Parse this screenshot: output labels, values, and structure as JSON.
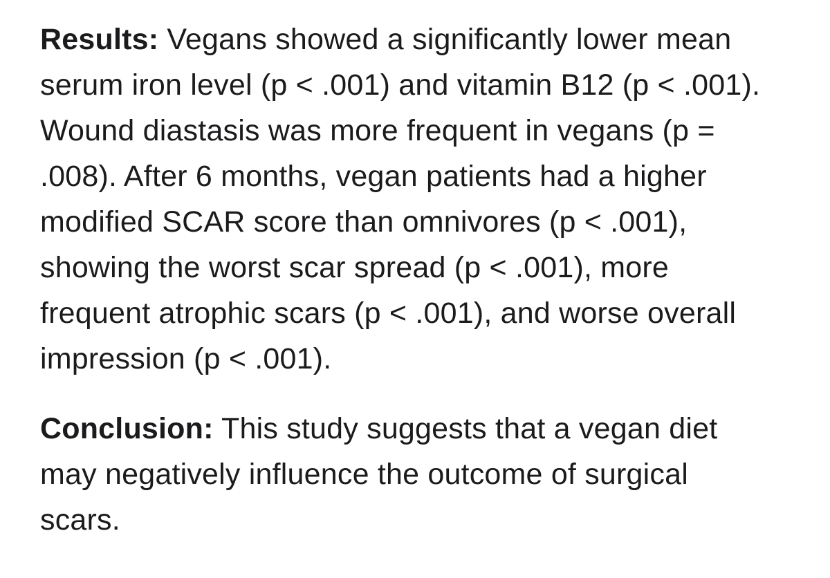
{
  "page": {
    "background_color": "#ffffff",
    "text_color": "#1b1b1d"
  },
  "abstract": {
    "sections": [
      {
        "label": "Results:",
        "text": "Vegans showed a significantly lower mean serum iron level (p < .001) and vitamin B12 (p < .001). Wound diastasis was more frequent in vegans (p = .008). After 6 months, vegan patients had a higher modified SCAR score than omnivores (p < .001), showing the worst scar spread (p < .001), more frequent atrophic scars (p < .001), and worse overall impression (p < .001)."
      },
      {
        "label": "Conclusion:",
        "text": "This study suggests that a vegan diet may negatively influence the outcome of surgical scars."
      }
    ]
  }
}
